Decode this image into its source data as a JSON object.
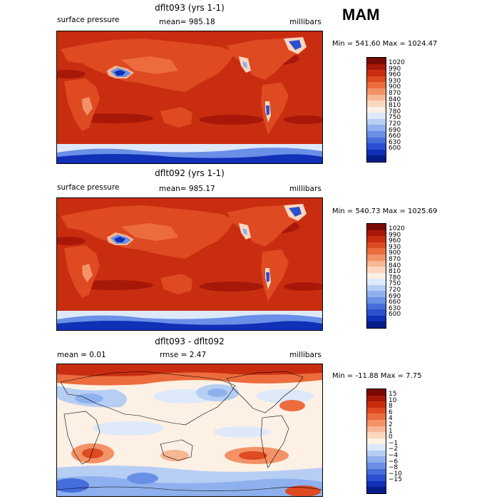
{
  "season": "MAM",
  "panels": [
    {
      "title": "dflt093 (yrs 1-1)",
      "left_label": "surface pressure",
      "center_label": "mean= 985.18",
      "right_label": "millibars",
      "minmax": "Min = 541.60 Max = 1024.47",
      "colorbar_labels": [
        "1020",
        "990",
        "960",
        "930",
        "900",
        "870",
        "840",
        "810",
        "780",
        "750",
        "720",
        "690",
        "660",
        "630",
        "600"
      ],
      "colorbar_colors": [
        "#7a0a06",
        "#a81808",
        "#c92d10",
        "#de4a22",
        "#ec6c3e",
        "#f39266",
        "#f7b694",
        "#fbd7c0",
        "#fdf0e4",
        "#dde9f9",
        "#b6cef4",
        "#8fb0ee",
        "#6a8fe6",
        "#456ddc",
        "#2a4fd0",
        "#1030b8",
        "#061c88"
      ]
    },
    {
      "title": "dflt092 (yrs 1-1)",
      "left_label": "surface pressure",
      "center_label": "mean= 985.17",
      "right_label": "millibars",
      "minmax": "Min = 540.73 Max = 1025.69",
      "colorbar_labels": [
        "1020",
        "990",
        "960",
        "930",
        "900",
        "870",
        "840",
        "810",
        "780",
        "750",
        "720",
        "690",
        "660",
        "630",
        "600"
      ],
      "colorbar_colors": [
        "#7a0a06",
        "#a81808",
        "#c92d10",
        "#de4a22",
        "#ec6c3e",
        "#f39266",
        "#f7b694",
        "#fbd7c0",
        "#fdf0e4",
        "#dde9f9",
        "#b6cef4",
        "#8fb0ee",
        "#6a8fe6",
        "#456ddc",
        "#2a4fd0",
        "#1030b8",
        "#061c88"
      ]
    },
    {
      "title": "dflt093 - dflt092",
      "left_label": "mean =    0.01",
      "center_label": "rmse =    2.47",
      "right_label": "millibars",
      "minmax": "Min = -11.88 Max =    7.75",
      "colorbar_labels": [
        "15",
        "10",
        "8",
        "6",
        "4",
        "2",
        "1",
        "0",
        "−1",
        "−2",
        "−4",
        "−6",
        "−8",
        "−10",
        "−15"
      ],
      "colorbar_colors": [
        "#7a0a06",
        "#a81808",
        "#c92d10",
        "#de4a22",
        "#ec6c3e",
        "#f39266",
        "#f7b694",
        "#fbd7c0",
        "#fdf0e4",
        "#dde9f9",
        "#b6cef4",
        "#8fb0ee",
        "#6a8fe6",
        "#456ddc",
        "#2a4fd0",
        "#1030b8",
        "#061c88"
      ]
    }
  ],
  "chart_data": [
    {
      "type": "heatmap",
      "title": "dflt093 (yrs 1-1)",
      "variable": "surface pressure",
      "units": "millibars",
      "season": "MAM",
      "mean": 985.18,
      "min": 541.6,
      "max": 1024.47,
      "contour_levels": [
        600,
        630,
        660,
        690,
        720,
        750,
        780,
        810,
        840,
        870,
        900,
        930,
        960,
        990,
        1020
      ]
    },
    {
      "type": "heatmap",
      "title": "dflt092 (yrs 1-1)",
      "variable": "surface pressure",
      "units": "millibars",
      "season": "MAM",
      "mean": 985.17,
      "min": 540.73,
      "max": 1025.69,
      "contour_levels": [
        600,
        630,
        660,
        690,
        720,
        750,
        780,
        810,
        840,
        870,
        900,
        930,
        960,
        990,
        1020
      ]
    },
    {
      "type": "heatmap",
      "title": "dflt093 - dflt092",
      "units": "millibars",
      "season": "MAM",
      "mean": 0.01,
      "rmse": 2.47,
      "min": -11.88,
      "max": 7.75,
      "contour_levels": [
        -15,
        -10,
        -8,
        -6,
        -4,
        -2,
        -1,
        0,
        1,
        2,
        4,
        6,
        8,
        10,
        15
      ]
    }
  ]
}
